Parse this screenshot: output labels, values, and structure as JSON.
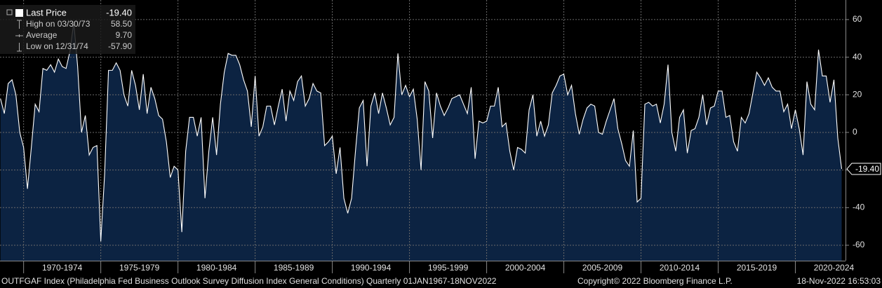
{
  "chart_data": {
    "type": "area",
    "stats": [
      {
        "name": "Last Price",
        "value": -19.4,
        "value_label": "-19.40"
      },
      {
        "name": "High on 03/30/73",
        "value": 58.5,
        "value_label": "58.50"
      },
      {
        "name": "Average",
        "value": 9.7,
        "value_label": "9.70"
      },
      {
        "name": "Low on 12/31/74",
        "value": -57.9,
        "value_label": "-57.90"
      }
    ],
    "footer": "OUTFGAF Index (Philadelphia Fed Business Outlook Survey Diffusion Index General Conditions)  Quarterly 01JAN1967-18NOV2022",
    "copyright": "Copyright© 2022 Bloomberg Finance L.P.",
    "timestamp": "18-Nov-2022 16:53:03",
    "x": [
      1968.5,
      1968.75,
      1969,
      1969.25,
      1969.5,
      1969.75,
      1970,
      1970.25,
      1970.5,
      1970.75,
      1971,
      1971.25,
      1971.5,
      1971.75,
      1972,
      1972.25,
      1972.5,
      1972.75,
      1973,
      1973.25,
      1973.5,
      1973.75,
      1974,
      1974.25,
      1974.5,
      1974.75,
      1975,
      1975.25,
      1975.5,
      1975.75,
      1976,
      1976.25,
      1976.5,
      1976.75,
      1977,
      1977.25,
      1977.5,
      1977.75,
      1978,
      1978.25,
      1978.5,
      1978.75,
      1979,
      1979.25,
      1979.5,
      1979.75,
      1980,
      1980.25,
      1980.5,
      1980.75,
      1981,
      1981.25,
      1981.5,
      1981.75,
      1982,
      1982.25,
      1982.5,
      1982.75,
      1983,
      1983.25,
      1983.5,
      1983.75,
      1984,
      1984.25,
      1984.5,
      1984.75,
      1985,
      1985.25,
      1985.5,
      1985.75,
      1986,
      1986.25,
      1986.5,
      1986.75,
      1987,
      1987.25,
      1987.5,
      1987.75,
      1988,
      1988.25,
      1988.5,
      1988.75,
      1989,
      1989.25,
      1989.5,
      1989.75,
      1990,
      1990.25,
      1990.5,
      1990.75,
      1991,
      1991.25,
      1991.5,
      1991.75,
      1992,
      1992.25,
      1992.5,
      1992.75,
      1993,
      1993.25,
      1993.5,
      1993.75,
      1994,
      1994.25,
      1994.5,
      1994.75,
      1995,
      1995.25,
      1995.5,
      1995.75,
      1996,
      1996.25,
      1996.5,
      1996.75,
      1997,
      1997.25,
      1997.5,
      1997.75,
      1998,
      1998.25,
      1998.5,
      1998.75,
      1999,
      1999.25,
      1999.5,
      1999.75,
      2000,
      2000.25,
      2000.5,
      2000.75,
      2001,
      2001.25,
      2001.5,
      2001.75,
      2002,
      2002.25,
      2002.5,
      2002.75,
      2003,
      2003.25,
      2003.5,
      2003.75,
      2004,
      2004.25,
      2004.5,
      2004.75,
      2005,
      2005.25,
      2005.5,
      2005.75,
      2006,
      2006.25,
      2006.5,
      2006.75,
      2007,
      2007.25,
      2007.5,
      2007.75,
      2008,
      2008.25,
      2008.5,
      2008.75,
      2009,
      2009.25,
      2009.5,
      2009.75,
      2010,
      2010.25,
      2010.5,
      2010.75,
      2011,
      2011.25,
      2011.5,
      2011.75,
      2012,
      2012.25,
      2012.5,
      2012.75,
      2013,
      2013.25,
      2013.5,
      2013.75,
      2014,
      2014.25,
      2014.5,
      2014.75,
      2015,
      2015.25,
      2015.5,
      2015.75,
      2016,
      2016.25,
      2016.5,
      2016.75,
      2017,
      2017.25,
      2017.5,
      2017.75,
      2018,
      2018.25,
      2018.5,
      2018.75,
      2019,
      2019.25,
      2019.5,
      2019.75,
      2020,
      2020.25,
      2020.5,
      2020.75,
      2021,
      2021.25,
      2021.5,
      2021.75,
      2022,
      2022.25,
      2022.5,
      2022.75,
      2023
    ],
    "series": [
      {
        "name": "OUTFGAF Index",
        "color": "#ffffff",
        "fill": "#0c2342",
        "values": [
          18,
          10,
          26,
          28,
          20,
          0,
          -8,
          -30,
          -8,
          15,
          11,
          34,
          33,
          36,
          32,
          39,
          35,
          34,
          43,
          58.5,
          35,
          0,
          9,
          -12,
          -8,
          -7,
          -57.9,
          -22,
          33,
          33,
          37,
          33,
          20,
          14,
          33,
          25,
          12,
          31,
          10,
          24,
          18,
          9,
          7,
          -5,
          -24,
          -18,
          -20,
          -53,
          -10,
          8,
          8,
          -2,
          8,
          -35,
          -10,
          8,
          -12,
          15,
          32,
          42,
          41,
          41,
          36,
          28,
          22,
          3,
          30,
          -2,
          3,
          14,
          14,
          4,
          14,
          23,
          6,
          22,
          17,
          27,
          30,
          14,
          18,
          26,
          22,
          21,
          -7,
          -5,
          -2,
          -22,
          -8,
          -35,
          -43,
          -35,
          -10,
          13,
          17,
          -18,
          14,
          21,
          10,
          21,
          13,
          4,
          8,
          42,
          20,
          25,
          19,
          23,
          7,
          -20,
          27,
          22,
          -3,
          21,
          14,
          9,
          13,
          18,
          19,
          20,
          15,
          10,
          24,
          -14,
          6,
          5,
          6,
          14,
          14,
          24,
          3,
          5,
          -10,
          -20,
          -8,
          -9,
          -11,
          12,
          20,
          -2,
          6,
          -2,
          4,
          21,
          25,
          30,
          31,
          20,
          25,
          10,
          -1,
          7,
          13,
          15,
          14,
          0,
          -1,
          6,
          12,
          18,
          2,
          -6,
          -15,
          -18,
          1,
          -37,
          -35,
          15,
          16,
          14,
          15,
          5,
          15,
          36,
          0,
          -10,
          8,
          12,
          -11,
          1,
          2,
          8,
          20,
          4,
          13,
          14,
          22,
          22,
          8,
          9,
          -5,
          -10,
          8,
          5,
          10,
          21,
          32,
          29,
          25,
          29,
          24,
          22,
          22,
          11,
          15,
          2,
          12,
          2,
          -12,
          27,
          15,
          12,
          44,
          30,
          30,
          16,
          28,
          -3,
          -19.4
        ]
      }
    ],
    "xlim": [
      1968.47,
      2023.25
    ],
    "xticks": [
      {
        "value": 1970,
        "label": "1970-1974"
      },
      {
        "value": 1975,
        "label": "1975-1979"
      },
      {
        "value": 1980,
        "label": "1980-1984"
      },
      {
        "value": 1985,
        "label": "1985-1989"
      },
      {
        "value": 1990,
        "label": "1990-1994"
      },
      {
        "value": 1995,
        "label": "1995-1999"
      },
      {
        "value": 2000,
        "label": "2000-2004"
      },
      {
        "value": 2005,
        "label": "2005-2009"
      },
      {
        "value": 2010,
        "label": "2010-2014"
      },
      {
        "value": 2015,
        "label": "2015-2019"
      },
      {
        "value": 2020,
        "label": "2020-2024"
      }
    ],
    "ylim": [
      -68.2,
      70.4
    ],
    "yticks": [
      -60,
      -40,
      -20,
      0,
      20,
      40,
      60
    ],
    "grid": true
  }
}
